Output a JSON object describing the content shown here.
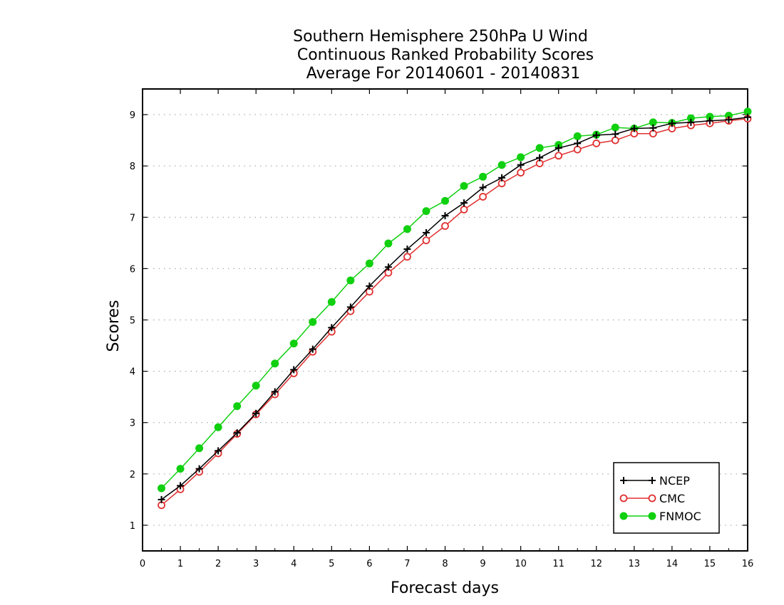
{
  "chart_data": {
    "type": "line",
    "title": [
      "Southern Hemisphere 250hPa U Wind",
      "Continuous Ranked Probability Scores",
      "Average For 20140601 - 20140831"
    ],
    "xlabel": "Forecast days",
    "ylabel": "Scores",
    "xlim": [
      0,
      16
    ],
    "ylim": [
      0.5,
      9.5
    ],
    "xticks": [
      0,
      1,
      2,
      3,
      4,
      5,
      6,
      7,
      8,
      9,
      10,
      11,
      12,
      13,
      14,
      15,
      16
    ],
    "yticks": [
      1,
      2,
      3,
      4,
      5,
      6,
      7,
      8,
      9
    ],
    "grid": "horizontal-dotted",
    "legend_position": "bottom-right",
    "x": [
      0.5,
      1,
      1.5,
      2,
      2.5,
      3,
      3.5,
      4,
      4.5,
      5,
      5.5,
      6,
      6.5,
      7,
      7.5,
      8,
      8.5,
      9,
      9.5,
      10,
      10.5,
      11,
      11.5,
      12,
      12.5,
      13,
      13.5,
      14,
      14.5,
      15,
      15.5,
      16
    ],
    "series": [
      {
        "name": "NCEP",
        "color": "#000000",
        "marker": "plus",
        "values": [
          1.5,
          1.77,
          2.1,
          2.45,
          2.8,
          3.18,
          3.6,
          4.03,
          4.43,
          4.85,
          5.25,
          5.66,
          6.03,
          6.38,
          6.7,
          7.03,
          7.28,
          7.58,
          7.77,
          8.02,
          8.16,
          8.35,
          8.44,
          8.6,
          8.62,
          8.73,
          8.74,
          8.83,
          8.85,
          8.88,
          8.9,
          8.95
        ]
      },
      {
        "name": "CMC",
        "color": "#e03030",
        "marker": "open-circle",
        "values": [
          1.39,
          1.7,
          2.04,
          2.4,
          2.78,
          3.16,
          3.55,
          3.96,
          4.38,
          4.77,
          5.17,
          5.55,
          5.92,
          6.23,
          6.55,
          6.83,
          7.15,
          7.4,
          7.66,
          7.87,
          8.05,
          8.2,
          8.32,
          8.44,
          8.5,
          8.63,
          8.63,
          8.73,
          8.79,
          8.83,
          8.88,
          8.92
        ]
      },
      {
        "name": "FNMOC",
        "color": "#10d010",
        "marker": "filled-circle",
        "values": [
          1.72,
          2.1,
          2.5,
          2.91,
          3.32,
          3.72,
          4.15,
          4.54,
          4.96,
          5.35,
          5.77,
          6.1,
          6.49,
          6.77,
          7.12,
          7.32,
          7.61,
          7.79,
          8.02,
          8.17,
          8.35,
          8.41,
          8.58,
          8.61,
          8.75,
          8.73,
          8.85,
          8.84,
          8.93,
          8.96,
          8.98,
          9.06
        ]
      }
    ]
  }
}
